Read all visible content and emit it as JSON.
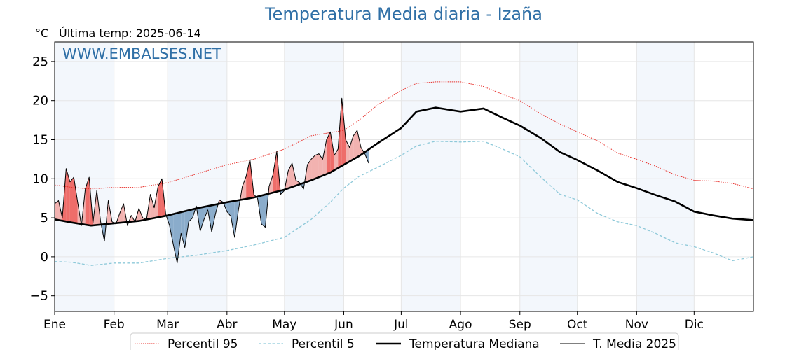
{
  "title": "Temperatura Media diaria - Izaña",
  "unit_label": "°C",
  "last_temp_label": "Última temp: 2025-06-14",
  "watermark": "WWW.EMBALSES.NET",
  "colors": {
    "title": "#2f6fa6",
    "p95": "#e8312c",
    "p5": "#8ec9d9",
    "median": "#000000",
    "current": "#000000",
    "above_fill": "#f2b2b0",
    "above_fill_strong": "#ee6d6a",
    "below_fill": "#8aaccb",
    "band": "#f3f7fc"
  },
  "chart_data": {
    "type": "line",
    "title": "Temperatura Media diaria - Izaña",
    "ylabel": "°C",
    "xlim": [
      1,
      366
    ],
    "ylim": [
      -7,
      27.5
    ],
    "month_starts": [
      1,
      32,
      60,
      91,
      121,
      152,
      182,
      213,
      244,
      274,
      305,
      335
    ],
    "x_tick_labels": [
      "Ene",
      "Feb",
      "Mar",
      "Abr",
      "May",
      "Jun",
      "Jul",
      "Ago",
      "Sep",
      "Oct",
      "Nov",
      "Dic"
    ],
    "y_ticks": [
      -5,
      0,
      5,
      10,
      15,
      20,
      25
    ],
    "grid": true,
    "legend_position": "bottom",
    "shading": "alternating month bands; red fill where T. Media 2025 above mediana, blue fill where below",
    "series": [
      {
        "name": "Percentil 95",
        "style": "dotted",
        "x": [
          1,
          10,
          20,
          32,
          45,
          60,
          75,
          91,
          105,
          121,
          135,
          152,
          160,
          170,
          182,
          190,
          200,
          213,
          225,
          235,
          244,
          255,
          265,
          274,
          285,
          295,
          305,
          315,
          325,
          335,
          345,
          355,
          366
        ],
        "y": [
          9.2,
          8.9,
          8.7,
          8.9,
          8.9,
          9.5,
          10.6,
          11.8,
          12.5,
          13.8,
          15.5,
          16.2,
          17.5,
          19.5,
          21.3,
          22.2,
          22.4,
          22.4,
          21.8,
          20.8,
          20.0,
          18.3,
          17.0,
          16.0,
          14.8,
          13.3,
          12.5,
          11.6,
          10.5,
          9.8,
          9.7,
          9.4,
          8.7
        ]
      },
      {
        "name": "Percentil 5",
        "style": "dashed",
        "x": [
          1,
          10,
          20,
          32,
          45,
          60,
          75,
          91,
          105,
          121,
          135,
          145,
          152,
          160,
          170,
          182,
          190,
          200,
          213,
          225,
          235,
          244,
          255,
          265,
          274,
          285,
          295,
          305,
          315,
          325,
          335,
          345,
          355,
          366
        ],
        "y": [
          -0.6,
          -0.7,
          -1.1,
          -0.8,
          -0.8,
          -0.2,
          0.2,
          0.8,
          1.5,
          2.5,
          4.8,
          7.0,
          8.8,
          10.3,
          11.5,
          13.0,
          14.2,
          14.8,
          14.7,
          14.8,
          13.8,
          12.8,
          10.2,
          8.0,
          7.3,
          5.5,
          4.5,
          4.0,
          3.0,
          1.8,
          1.3,
          0.5,
          -0.5,
          0.0
        ]
      },
      {
        "name": "Temperatura Mediana",
        "style": "solid-thick",
        "x": [
          1,
          10,
          20,
          32,
          45,
          60,
          75,
          91,
          105,
          121,
          135,
          145,
          152,
          160,
          170,
          182,
          190,
          200,
          213,
          225,
          235,
          244,
          255,
          265,
          274,
          285,
          295,
          305,
          315,
          325,
          335,
          345,
          355,
          366
        ],
        "y": [
          4.8,
          4.4,
          4.0,
          4.3,
          4.6,
          5.3,
          6.2,
          7.0,
          7.6,
          8.6,
          9.8,
          10.8,
          11.8,
          12.9,
          14.6,
          16.5,
          18.6,
          19.1,
          18.6,
          19.0,
          17.8,
          16.8,
          15.2,
          13.4,
          12.4,
          11.0,
          9.6,
          8.8,
          7.9,
          7.1,
          5.8,
          5.3,
          4.9,
          4.7
        ]
      },
      {
        "name": "T. Media 2025",
        "style": "solid-thin",
        "x": [
          1,
          3,
          5,
          7,
          9,
          11,
          13,
          15,
          17,
          19,
          21,
          23,
          25,
          27,
          29,
          31,
          33,
          35,
          37,
          39,
          41,
          43,
          45,
          47,
          49,
          51,
          53,
          55,
          57,
          59,
          61,
          63,
          65,
          67,
          69,
          71,
          73,
          75,
          77,
          79,
          81,
          83,
          85,
          87,
          89,
          91,
          93,
          95,
          97,
          99,
          101,
          103,
          105,
          107,
          109,
          111,
          113,
          115,
          117,
          119,
          121,
          123,
          125,
          127,
          129,
          131,
          133,
          135,
          137,
          139,
          141,
          143,
          145,
          147,
          149,
          151,
          153,
          155,
          157,
          159,
          161,
          163,
          165
        ],
        "y": [
          6.8,
          7.2,
          5.0,
          11.3,
          9.6,
          10.2,
          7.0,
          4.0,
          8.7,
          10.2,
          4.3,
          8.5,
          4.5,
          2.0,
          7.2,
          4.5,
          4.2,
          5.6,
          6.8,
          4.0,
          5.3,
          4.5,
          6.2,
          5.0,
          4.8,
          8.0,
          6.3,
          9.0,
          10.0,
          5.5,
          4.0,
          1.5,
          -0.8,
          3.0,
          1.2,
          4.5,
          5.0,
          6.5,
          3.3,
          4.8,
          6.0,
          3.2,
          5.5,
          7.3,
          7.0,
          5.8,
          5.2,
          2.5,
          6.0,
          9.0,
          10.3,
          12.5,
          8.0,
          7.5,
          4.2,
          3.8,
          9.0,
          10.5,
          13.5,
          8.0,
          8.5,
          11.0,
          12.0,
          9.8,
          9.5,
          8.7,
          11.8,
          12.5,
          13.0,
          13.2,
          12.5,
          15.0,
          16.0,
          13.0,
          13.8,
          20.3,
          15.0,
          14.0,
          15.5,
          16.2,
          14.0,
          13.2,
          12.0
        ]
      }
    ]
  },
  "legend": [
    {
      "label": "Percentil 95",
      "style": "dotted",
      "color": "#e8312c"
    },
    {
      "label": "Percentil 5",
      "style": "dashed",
      "color": "#8ec9d9"
    },
    {
      "label": "Temperatura Mediana",
      "style": "solid-thick",
      "color": "#000000"
    },
    {
      "label": "T. Media 2025",
      "style": "solid-thin",
      "color": "#000000"
    }
  ]
}
